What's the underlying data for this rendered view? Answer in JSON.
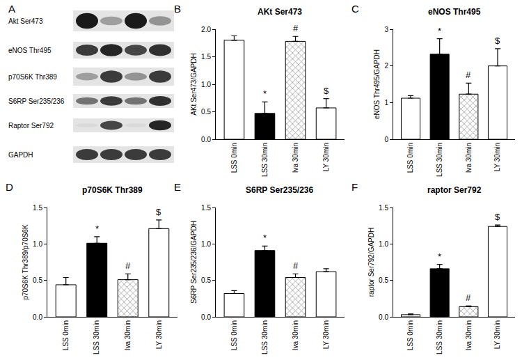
{
  "blot": {
    "panel_label": "A",
    "rows": [
      "Akt Ser473",
      "eNOS Thr495",
      "p70S6K Thr389",
      "S6RP Ser235/236",
      "Raptor Ser792",
      "GAPDH"
    ]
  },
  "chart_data": [
    {
      "type": "bar",
      "panel_label": "B",
      "title": "AKt Ser473",
      "y_label": "AKt Ser473/GAPDH",
      "categories": [
        "LSS 0min",
        "LSS 30min",
        "Iva 30min",
        "LY 30min"
      ],
      "values": [
        1.8,
        0.47,
        1.78,
        0.57
      ],
      "errors": [
        0.08,
        0.21,
        0.09,
        0.17
      ],
      "annotations": [
        null,
        "*",
        "#",
        "$"
      ],
      "colors": [
        "#ffffff",
        "#000000",
        "#9a9a9a",
        "#ffffff"
      ],
      "ylim": [
        0,
        2.0
      ],
      "yticks": [
        {
          "value": 0,
          "label": "0.0"
        },
        {
          "value": 0.5,
          "label": "0.5"
        },
        {
          "value": 1.0,
          "label": "1.0"
        },
        {
          "value": 1.5,
          "label": "1.5"
        },
        {
          "value": 2.0,
          "label": "2.0"
        }
      ],
      "grid": false
    },
    {
      "type": "bar",
      "panel_label": "C",
      "title": "eNOS Thr495",
      "y_label": "eNOS Thr495/GAPDH",
      "categories": [
        "LSS 0min",
        "LSS 30min",
        "Iva 30min",
        "LY 30min"
      ],
      "values": [
        1.12,
        2.32,
        1.23,
        2.0
      ],
      "errors": [
        0.07,
        0.42,
        0.3,
        0.47
      ],
      "annotations": [
        null,
        "*",
        "#",
        "$"
      ],
      "colors": [
        "#ffffff",
        "#000000",
        "#9a9a9a",
        "#ffffff"
      ],
      "ylim": [
        0,
        3
      ],
      "yticks": [
        0,
        1,
        2,
        3
      ],
      "grid": false
    },
    {
      "type": "bar",
      "panel_label": "D",
      "title": "p70S6K Thr389",
      "y_label": "p70S6K Thr389/p70S6K",
      "categories": [
        "LSS 0min",
        "LSS 30min",
        "Iva 30min",
        "LY 30min"
      ],
      "values": [
        0.44,
        1.01,
        0.51,
        1.21
      ],
      "errors": [
        0.1,
        0.09,
        0.08,
        0.12
      ],
      "annotations": [
        null,
        "*",
        "#",
        "$"
      ],
      "colors": [
        "#ffffff",
        "#000000",
        "#9a9a9a",
        "#ffffff"
      ],
      "ylim": [
        0,
        1.5
      ],
      "yticks": [
        {
          "value": 0,
          "label": "0.0"
        },
        {
          "value": 0.5,
          "label": "0.5"
        },
        {
          "value": 1.0,
          "label": "1.0"
        },
        {
          "value": 1.5,
          "label": "1.5"
        }
      ],
      "grid": false
    },
    {
      "type": "bar",
      "panel_label": "E",
      "title": "S6RP Ser235/236",
      "y_label": "S6RP Ser235/236/GAPDH",
      "categories": [
        "LSS 0min",
        "LSS 30min",
        "Iva 30min",
        "LY 30min"
      ],
      "values": [
        0.32,
        0.91,
        0.54,
        0.62
      ],
      "errors": [
        0.04,
        0.06,
        0.05,
        0.04
      ],
      "annotations": [
        null,
        "*",
        "#",
        null
      ],
      "colors": [
        "#ffffff",
        "#000000",
        "#9a9a9a",
        "#ffffff"
      ],
      "ylim": [
        0,
        1.5
      ],
      "yticks": [
        {
          "value": 0,
          "label": "0.0"
        },
        {
          "value": 0.5,
          "label": "0.5"
        },
        {
          "value": 1.0,
          "label": "1.0"
        },
        {
          "value": 1.5,
          "label": "1.5"
        }
      ],
      "grid": false
    },
    {
      "type": "bar",
      "panel_label": "F",
      "title": "raptor Ser792",
      "y_label": "raptor Ser792/GAPDH",
      "categories": [
        "LSS 0min",
        "LSS 30min",
        "Iva 30min",
        "LY 30min"
      ],
      "values": [
        0.03,
        0.66,
        0.14,
        1.24
      ],
      "errors": [
        0.01,
        0.06,
        0.01,
        0.02
      ],
      "annotations": [
        null,
        "*",
        "#",
        "$"
      ],
      "colors": [
        "#ffffff",
        "#000000",
        "#9a9a9a",
        "#ffffff"
      ],
      "ylim": [
        0,
        1.5
      ],
      "yticks": [
        {
          "value": 0,
          "label": "0.0"
        },
        {
          "value": 0.5,
          "label": "0.5"
        },
        {
          "value": 1.0,
          "label": "1.0"
        },
        {
          "value": 1.5,
          "label": "1.5"
        }
      ],
      "grid": false
    }
  ]
}
